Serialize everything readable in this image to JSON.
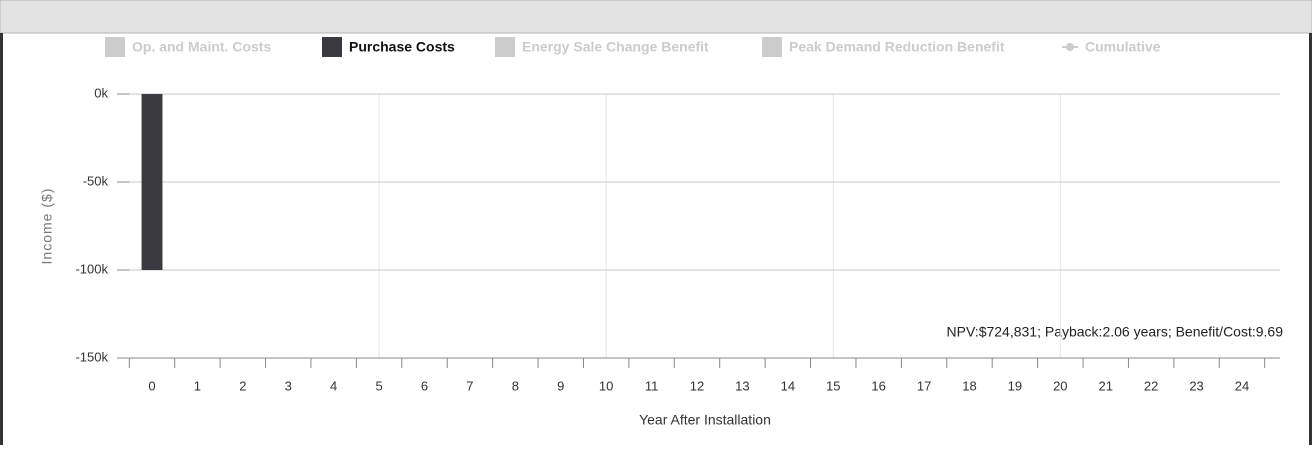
{
  "chart_data": {
    "type": "bar",
    "x_label": "Year After Installation",
    "y_label": "Income ($)",
    "annotation": "NPV:$724,831; Payback:2.06 years; Benefit/Cost:9.69",
    "categories": [
      "0",
      "1",
      "2",
      "3",
      "4",
      "5",
      "6",
      "7",
      "8",
      "9",
      "10",
      "11",
      "12",
      "13",
      "14",
      "15",
      "16",
      "17",
      "18",
      "19",
      "20",
      "21",
      "22",
      "23",
      "24"
    ],
    "series": [
      {
        "name": "Op. and Maint. Costs",
        "color": "#cccccc",
        "visible": false
      },
      {
        "name": "Purchase Costs",
        "color": "#3a3a40",
        "visible": true,
        "values": [
          -100000,
          0,
          0,
          0,
          0,
          0,
          0,
          0,
          0,
          0,
          0,
          0,
          0,
          0,
          0,
          0,
          0,
          0,
          0,
          0,
          0,
          0,
          0,
          0,
          0
        ]
      },
      {
        "name": "Energy Sale Change Benefit",
        "color": "#cccccc",
        "visible": false
      },
      {
        "name": "Peak Demand Reduction Benefit",
        "color": "#cccccc",
        "visible": false
      },
      {
        "name": "Cumulative",
        "color": "#cccccc",
        "visible": false,
        "line": true
      }
    ],
    "ylim": [
      -150000,
      0
    ],
    "yticks": [
      {
        "value": 0,
        "label": "0k"
      },
      {
        "value": -50000,
        "label": "-50k"
      },
      {
        "value": -100000,
        "label": "-100k"
      },
      {
        "value": -150000,
        "label": "-150k"
      }
    ],
    "grid": true
  }
}
